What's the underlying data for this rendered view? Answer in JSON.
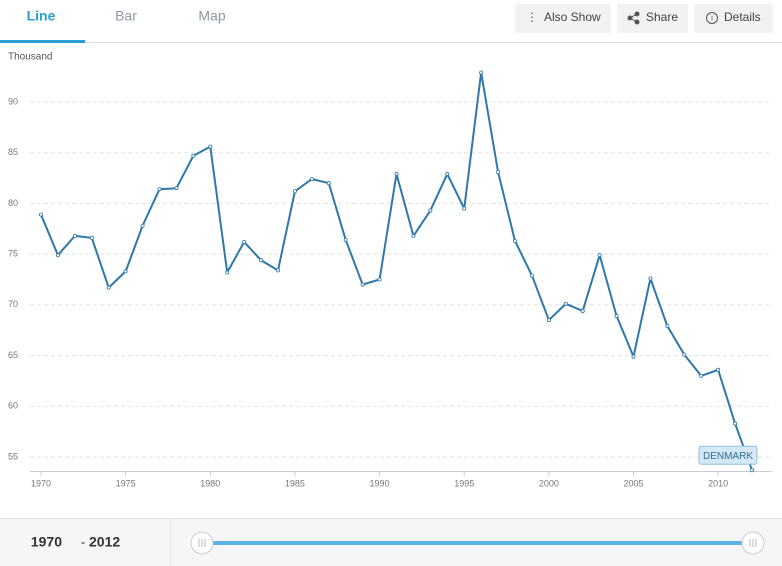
{
  "tabs": [
    "Line",
    "Bar",
    "Map"
  ],
  "buttons": [
    "Also Show",
    "Share",
    "Details"
  ],
  "chart_data": {
    "type": "line",
    "y_label": "Thousand",
    "x": [
      1970,
      1971,
      1972,
      1973,
      1974,
      1975,
      1976,
      1977,
      1978,
      1979,
      1980,
      1981,
      1982,
      1983,
      1984,
      1985,
      1986,
      1987,
      1988,
      1989,
      1990,
      1991,
      1992,
      1993,
      1994,
      1995,
      1996,
      1997,
      1998,
      1999,
      2000,
      2001,
      2002,
      2003,
      2004,
      2005,
      2006,
      2007,
      2008,
      2009,
      2010,
      2011,
      2012
    ],
    "series": [
      {
        "name": "DENMARK",
        "color": "#2f78a8",
        "values": [
          78.9,
          74.9,
          76.8,
          76.6,
          71.7,
          73.3,
          77.8,
          81.4,
          81.5,
          84.7,
          85.6,
          73.2,
          76.2,
          74.4,
          73.4,
          81.2,
          82.4,
          82.0,
          76.4,
          72.0,
          72.5,
          82.9,
          76.8,
          79.3,
          82.9,
          79.5,
          92.9,
          83.1,
          76.3,
          72.9,
          68.5,
          70.1,
          69.4,
          74.9,
          68.9,
          64.9,
          72.6,
          67.9,
          65.1,
          63.0,
          63.6,
          58.3,
          53.7
        ]
      }
    ],
    "xlim": [
      1970,
      2012
    ],
    "xticks": [
      1970,
      1975,
      1980,
      1985,
      1990,
      1995,
      2000,
      2005,
      2010
    ],
    "ylim": [
      53,
      93.5
    ],
    "yticks": [
      55,
      60,
      65,
      70,
      75,
      80,
      85,
      90
    ],
    "grid": true
  },
  "slider": {
    "start": "1970",
    "separator": "-",
    "end": "2012"
  }
}
